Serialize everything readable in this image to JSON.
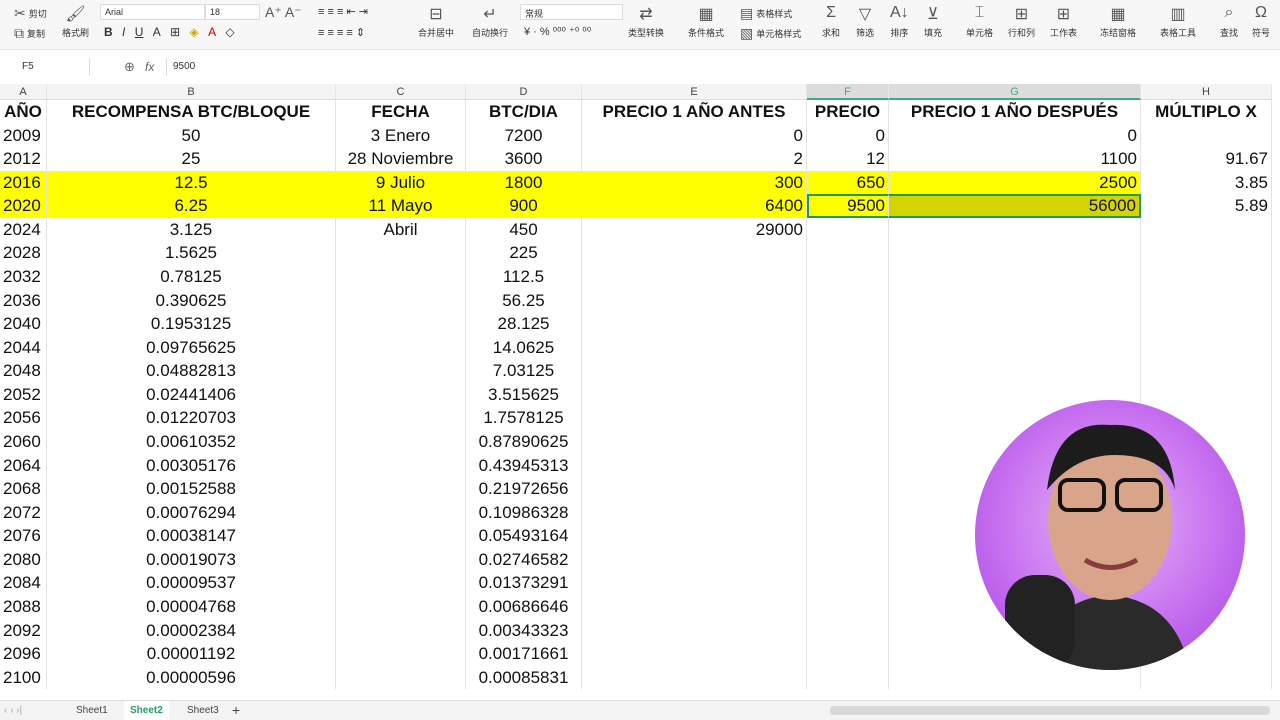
{
  "toolbar": {
    "cut": "剪切",
    "copy": "复制",
    "format_painter": "格式刷",
    "font": "Arial",
    "font_size": "18",
    "merge": "合并居中",
    "wrap": "自动换行",
    "number_format": "常规",
    "type_convert": "类型转换",
    "cond_format": "条件格式",
    "table_style": "表格样式",
    "cell_style": "单元格样式",
    "sum": "求和",
    "filter": "筛选",
    "sort": "排序",
    "fill": "填充",
    "cell": "单元格",
    "rowcol": "行和列",
    "sheet": "工作表",
    "freeze": "冻结窗格",
    "table_tools": "表格工具",
    "find": "查找",
    "symbol": "符号"
  },
  "formula_bar": {
    "cell_ref": "F5",
    "fx": "fx",
    "value": "9500"
  },
  "columns": [
    "A",
    "B",
    "C",
    "D",
    "E",
    "F",
    "G",
    "H"
  ],
  "header": [
    "AÑO",
    "RECOMPENSA BTC/BLOQUE",
    "FECHA",
    "BTC/DIA",
    "PRECIO 1 AÑO ANTES",
    "PRECIO",
    "PRECIO 1 AÑO DESPUÉS",
    "MÚLTIPLO X"
  ],
  "rows": [
    [
      "2009",
      "50",
      "3 Enero",
      "7200",
      "0",
      "0",
      "0",
      ""
    ],
    [
      "2012",
      "25",
      "28 Noviembre",
      "3600",
      "2",
      "12",
      "1100",
      "91.67"
    ],
    [
      "2016",
      "12.5",
      "9 Julio",
      "1800",
      "300",
      "650",
      "2500",
      "3.85"
    ],
    [
      "2020",
      "6.25",
      "11 Mayo",
      "900",
      "6400",
      "9500",
      "56000",
      "5.89"
    ],
    [
      "2024",
      "3.125",
      "Abril",
      "450",
      "29000",
      "",
      "",
      ""
    ],
    [
      "2028",
      "1.5625",
      "",
      "225",
      "",
      "",
      "",
      ""
    ],
    [
      "2032",
      "0.78125",
      "",
      "112.5",
      "",
      "",
      "",
      ""
    ],
    [
      "2036",
      "0.390625",
      "",
      "56.25",
      "",
      "",
      "",
      ""
    ],
    [
      "2040",
      "0.1953125",
      "",
      "28.125",
      "",
      "",
      "",
      ""
    ],
    [
      "2044",
      "0.09765625",
      "",
      "14.0625",
      "",
      "",
      "",
      ""
    ],
    [
      "2048",
      "0.04882813",
      "",
      "7.03125",
      "",
      "",
      "",
      ""
    ],
    [
      "2052",
      "0.02441406",
      "",
      "3.515625",
      "",
      "",
      "",
      ""
    ],
    [
      "2056",
      "0.01220703",
      "",
      "1.7578125",
      "",
      "",
      "",
      ""
    ],
    [
      "2060",
      "0.00610352",
      "",
      "0.87890625",
      "",
      "",
      "",
      ""
    ],
    [
      "2064",
      "0.00305176",
      "",
      "0.43945313",
      "",
      "",
      "",
      ""
    ],
    [
      "2068",
      "0.00152588",
      "",
      "0.21972656",
      "",
      "",
      "",
      ""
    ],
    [
      "2072",
      "0.00076294",
      "",
      "0.10986328",
      "",
      "",
      "",
      ""
    ],
    [
      "2076",
      "0.00038147",
      "",
      "0.05493164",
      "",
      "",
      "",
      ""
    ],
    [
      "2080",
      "0.00019073",
      "",
      "0.02746582",
      "",
      "",
      "",
      ""
    ],
    [
      "2084",
      "0.00009537",
      "",
      "0.01373291",
      "",
      "",
      "",
      ""
    ],
    [
      "2088",
      "0.00004768",
      "",
      "0.00686646",
      "",
      "",
      "",
      ""
    ],
    [
      "2092",
      "0.00002384",
      "",
      "0.00343323",
      "",
      "",
      "",
      ""
    ],
    [
      "2096",
      "0.00001192",
      "",
      "0.00171661",
      "",
      "",
      "",
      ""
    ],
    [
      "2100",
      "0.00000596",
      "",
      "0.00085831",
      "",
      "",
      "",
      ""
    ]
  ],
  "highlight_color": "#ffff00",
  "sheets": [
    "Sheet1",
    "Sheet2",
    "Sheet3"
  ],
  "active_sheet": "Sheet2"
}
